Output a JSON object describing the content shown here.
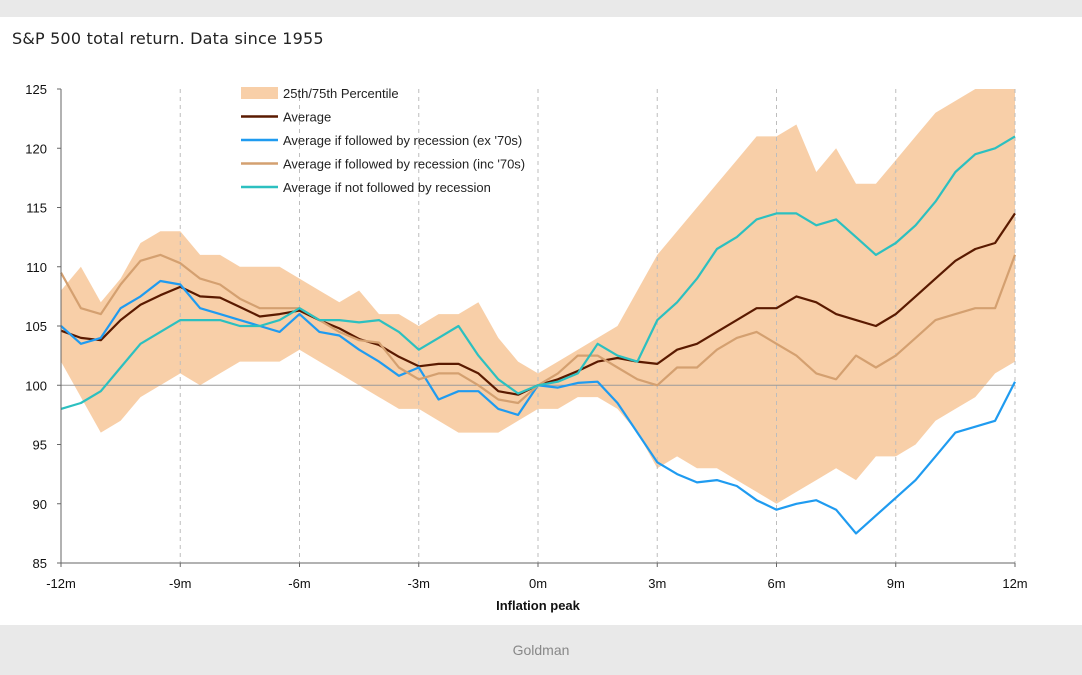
{
  "chart_data": {
    "type": "line",
    "title": "S&P 500 total return. Data since 1955",
    "xlabel": "Inflation peak",
    "ylabel": "",
    "x_tick_labels": [
      "-12m",
      "-9m",
      "-6m",
      "-3m",
      "0m",
      "3m",
      "6m",
      "9m",
      "12m"
    ],
    "x_tick_values": [
      -12,
      -9,
      -6,
      -3,
      0,
      3,
      6,
      9,
      12
    ],
    "xlim": [
      -12,
      12
    ],
    "ylim": [
      85,
      125
    ],
    "y_ticks": [
      85,
      90,
      95,
      100,
      105,
      110,
      115,
      120,
      125
    ],
    "reference_line": 100,
    "grid": "vertical dashed at x ticks",
    "legend_placement": "top-center",
    "x": [
      -12,
      -11.5,
      -11,
      -10.5,
      -10,
      -9.5,
      -9,
      -8.5,
      -8,
      -7.5,
      -7,
      -6.5,
      -6,
      -5.5,
      -5,
      -4.5,
      -4,
      -3.5,
      -3,
      -2.5,
      -2,
      -1.5,
      -1,
      -0.5,
      0,
      0.5,
      1,
      1.5,
      2,
      2.5,
      3,
      3.5,
      4,
      4.5,
      5,
      5.5,
      6,
      6.5,
      7,
      7.5,
      8,
      8.5,
      9,
      9.5,
      10,
      10.5,
      11,
      11.5,
      12
    ],
    "band": {
      "name": "25th/75th Percentile",
      "color": "#f8cfa8",
      "lower": [
        102,
        99,
        96,
        97,
        99,
        100,
        101,
        100,
        101,
        102,
        102,
        102,
        103,
        102,
        101,
        100,
        99,
        98,
        98,
        97,
        96,
        96,
        96,
        97,
        98,
        98,
        99,
        99,
        98,
        96,
        93,
        94,
        93,
        93,
        92,
        91,
        90,
        91,
        92,
        93,
        92,
        94,
        94,
        95,
        97,
        98,
        99,
        101,
        102
      ],
      "upper": [
        108,
        110,
        107,
        109,
        112,
        113,
        113,
        111,
        111,
        110,
        110,
        110,
        109,
        108,
        107,
        108,
        106,
        106,
        105,
        106,
        106,
        107,
        104,
        102,
        101,
        102,
        103,
        104,
        105,
        108,
        111,
        113,
        115,
        117,
        119,
        121,
        121,
        122,
        118,
        120,
        117,
        117,
        119,
        121,
        123,
        124,
        125,
        125,
        125
      ]
    },
    "series": [
      {
        "name": "Average",
        "color": "#5a1a00",
        "values": [
          104.6,
          104,
          103.8,
          105.5,
          106.8,
          107.6,
          108.3,
          107.5,
          107.4,
          106.6,
          105.8,
          106,
          106.3,
          105.5,
          104.8,
          103.9,
          103.4,
          102.4,
          101.6,
          101.8,
          101.8,
          101,
          99.5,
          99.2,
          100,
          100.5,
          101.2,
          102,
          102.3,
          102,
          101.8,
          103,
          103.5,
          104.5,
          105.5,
          106.5,
          106.5,
          107.5,
          107,
          106,
          105.5,
          105,
          106,
          107.5,
          109,
          110.5,
          111.5,
          112,
          114.5
        ]
      },
      {
        "name": "Average if followed by recession (ex '70s)",
        "color": "#1f9bf0",
        "values": [
          105,
          103.5,
          104,
          106.5,
          107.5,
          108.8,
          108.5,
          106.5,
          106,
          105.5,
          105,
          104.5,
          106,
          104.5,
          104.2,
          103,
          102,
          100.8,
          101.5,
          98.8,
          99.5,
          99.5,
          98,
          97.5,
          100,
          99.8,
          100.2,
          100.3,
          98.5,
          96,
          93.5,
          92.5,
          91.8,
          92,
          91.5,
          90.3,
          89.5,
          90,
          90.3,
          89.5,
          87.5,
          89,
          90.5,
          92,
          94,
          96,
          96.5,
          97,
          100.3
        ]
      },
      {
        "name": "Average if followed by recession (inc '70s)",
        "color": "#d4a070",
        "values": [
          109.5,
          106.5,
          106,
          108.5,
          110.5,
          111,
          110.3,
          109,
          108.5,
          107.3,
          106.5,
          106.5,
          106.5,
          105.5,
          104.5,
          103.8,
          103.6,
          101.5,
          100.5,
          101,
          101,
          100,
          98.8,
          98.5,
          100,
          101,
          102.5,
          102.5,
          101.5,
          100.5,
          100,
          101.5,
          101.5,
          103,
          104,
          104.5,
          103.5,
          102.5,
          101,
          100.5,
          102.5,
          101.5,
          102.5,
          104,
          105.5,
          106,
          106.5,
          106.5,
          111
        ]
      },
      {
        "name": "Average if not followed by recession",
        "color": "#2cc0c0",
        "values": [
          98,
          98.5,
          99.5,
          101.5,
          103.5,
          104.5,
          105.5,
          105.5,
          105.5,
          105,
          105,
          105.5,
          106.5,
          105.5,
          105.5,
          105.3,
          105.5,
          104.5,
          103,
          104,
          105,
          102.5,
          100.5,
          99.3,
          100,
          100.3,
          101,
          103.5,
          102.5,
          102,
          105.5,
          107,
          109,
          111.5,
          112.5,
          114,
          114.5,
          114.5,
          113.5,
          114,
          112.5,
          111,
          112,
          113.5,
          115.5,
          118,
          119.5,
          120,
          121
        ]
      }
    ]
  }
}
